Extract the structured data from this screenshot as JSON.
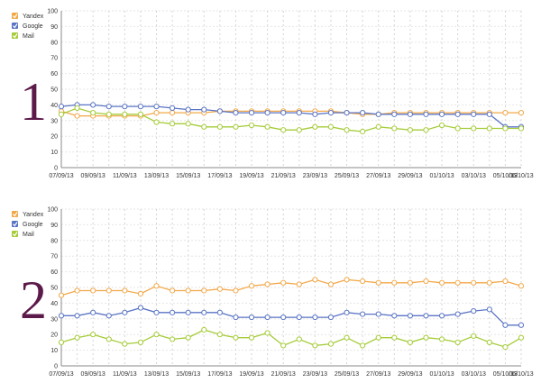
{
  "chart_data": [
    {
      "type": "line",
      "marker": "1",
      "x": [
        "07/09/13",
        "08/09/13",
        "09/09/13",
        "10/09/13",
        "11/09/13",
        "12/09/13",
        "13/09/13",
        "14/09/13",
        "15/09/13",
        "16/09/13",
        "17/09/13",
        "18/09/13",
        "19/09/13",
        "20/09/13",
        "21/09/13",
        "22/09/13",
        "23/09/13",
        "24/09/13",
        "25/09/13",
        "26/09/13",
        "27/09/13",
        "28/09/13",
        "29/09/13",
        "30/09/13",
        "01/10/13",
        "02/10/13",
        "03/10/13",
        "04/10/13",
        "05/10/13",
        "06/10/13"
      ],
      "xticks": [
        "07/09/13",
        "09/09/13",
        "11/09/13",
        "13/09/13",
        "15/09/13",
        "17/09/13",
        "19/09/13",
        "21/09/13",
        "23/09/13",
        "25/09/13",
        "27/09/13",
        "29/09/13",
        "01/10/13",
        "03/10/13",
        "05/10/13",
        "06/10/13"
      ],
      "ylim": [
        0,
        100
      ],
      "yticks": [
        0,
        10,
        20,
        30,
        40,
        50,
        60,
        70,
        80,
        90,
        100
      ],
      "grid": true,
      "legend_position": "top-left",
      "series": [
        {
          "name": "Yandex",
          "color": "#f2a84a",
          "values": [
            36,
            33,
            33,
            33,
            33,
            33,
            35,
            35,
            35,
            35,
            36,
            36,
            36,
            36,
            36,
            36,
            36,
            36,
            35,
            34,
            34,
            35,
            35,
            35,
            35,
            35,
            35,
            35,
            35,
            35
          ]
        },
        {
          "name": "Google",
          "color": "#5a74c4",
          "values": [
            39,
            40,
            40,
            39,
            39,
            39,
            39,
            38,
            37,
            37,
            36,
            35,
            35,
            35,
            35,
            35,
            34,
            35,
            35,
            35,
            34,
            34,
            34,
            34,
            34,
            34,
            34,
            34,
            26,
            26
          ]
        },
        {
          "name": "Mail",
          "color": "#a6cc3a",
          "values": [
            34,
            38,
            35,
            34,
            34,
            34,
            29,
            28,
            28,
            26,
            26,
            26,
            27,
            26,
            24,
            24,
            26,
            26,
            24,
            23,
            26,
            25,
            24,
            24,
            27,
            25,
            25,
            25,
            25,
            25
          ]
        }
      ]
    },
    {
      "type": "line",
      "marker": "2",
      "x": [
        "07/09/13",
        "08/09/13",
        "09/09/13",
        "10/09/13",
        "11/09/13",
        "12/09/13",
        "13/09/13",
        "14/09/13",
        "15/09/13",
        "16/09/13",
        "17/09/13",
        "18/09/13",
        "19/09/13",
        "20/09/13",
        "21/09/13",
        "22/09/13",
        "23/09/13",
        "24/09/13",
        "25/09/13",
        "26/09/13",
        "27/09/13",
        "28/09/13",
        "29/09/13",
        "30/09/13",
        "01/10/13",
        "02/10/13",
        "03/10/13",
        "04/10/13",
        "05/10/13",
        "06/10/13"
      ],
      "xticks": [
        "07/09/13",
        "09/09/13",
        "11/09/13",
        "13/09/13",
        "15/09/13",
        "17/09/13",
        "19/09/13",
        "21/09/13",
        "23/09/13",
        "25/09/13",
        "27/09/13",
        "29/09/13",
        "01/10/13",
        "03/10/13",
        "05/10/13",
        "06/10/13"
      ],
      "ylim": [
        0,
        100
      ],
      "yticks": [
        0,
        10,
        20,
        30,
        40,
        50,
        60,
        70,
        80,
        90,
        100
      ],
      "grid": true,
      "legend_position": "top-left",
      "series": [
        {
          "name": "Yandex",
          "color": "#f2a84a",
          "values": [
            45,
            48,
            48,
            48,
            48,
            46,
            51,
            48,
            48,
            48,
            49,
            48,
            51,
            52,
            53,
            52,
            55,
            52,
            55,
            54,
            53,
            53,
            53,
            54,
            53,
            53,
            53,
            53,
            54,
            51
          ]
        },
        {
          "name": "Google",
          "color": "#5a74c4",
          "values": [
            32,
            32,
            34,
            32,
            34,
            37,
            34,
            34,
            34,
            34,
            34,
            31,
            31,
            31,
            31,
            31,
            31,
            31,
            34,
            33,
            33,
            32,
            32,
            32,
            32,
            33,
            35,
            36,
            26,
            26
          ]
        },
        {
          "name": "Mail",
          "color": "#a6cc3a",
          "values": [
            15,
            18,
            20,
            17,
            14,
            15,
            20,
            17,
            18,
            23,
            20,
            18,
            18,
            21,
            13,
            17,
            13,
            14,
            18,
            13,
            18,
            18,
            15,
            18,
            17,
            15,
            19,
            15,
            12,
            18
          ]
        }
      ]
    }
  ]
}
